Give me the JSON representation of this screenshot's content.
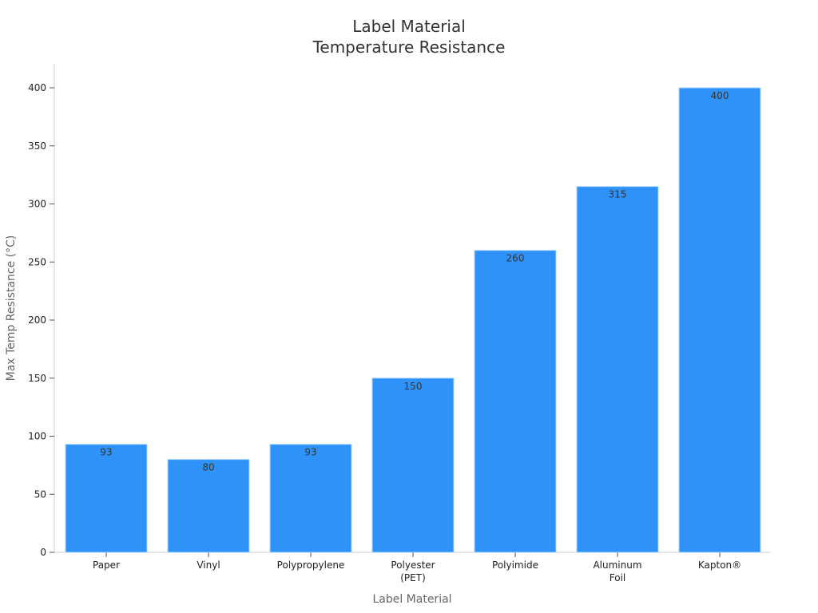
{
  "chart_data": {
    "type": "bar",
    "title_lines": [
      "Label Material",
      "Temperature Resistance"
    ],
    "xlabel": "Label Material",
    "ylabel": "Max Temp Resistance (°C)",
    "categories": [
      "Paper",
      "Vinyl",
      "Polypropylene",
      "Polyester (PET)",
      "Polyimide",
      "Aluminum Foil",
      "Kapton®"
    ],
    "category_label_lines": [
      [
        "Paper"
      ],
      [
        "Vinyl"
      ],
      [
        "Polypropylene"
      ],
      [
        "Polyester",
        "(PET)"
      ],
      [
        "Polyimide"
      ],
      [
        "Aluminum",
        "Foil"
      ],
      [
        "Kapton®"
      ]
    ],
    "values": [
      93,
      80,
      93,
      150,
      260,
      315,
      400
    ],
    "yticks": [
      0,
      50,
      100,
      150,
      200,
      250,
      300,
      350,
      400
    ],
    "ylim": [
      0,
      420
    ],
    "grid": false,
    "bar_color": "#2e92f8",
    "bar_edge_color": "#aad4fb",
    "axis_color": "#cccccc"
  }
}
